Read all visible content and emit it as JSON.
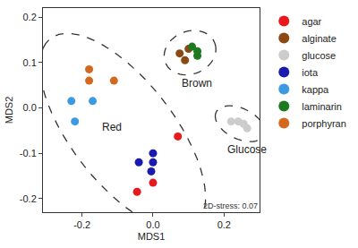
{
  "chart_data": {
    "type": "scatter",
    "x_label": "MDS1",
    "y_label": "MDS2",
    "xlim": [
      -0.31,
      0.3
    ],
    "ylim": [
      -0.23,
      0.22
    ],
    "xticks": [
      {
        "value": -0.2,
        "label": "-0.2"
      },
      {
        "value": 0,
        "label": "0.0"
      },
      {
        "value": 0.2,
        "label": "0.2"
      }
    ],
    "yticks": [
      {
        "value": -0.2,
        "label": "-0.2"
      },
      {
        "value": -0.1,
        "label": "-0.1"
      },
      {
        "value": 0,
        "label": "0.0"
      },
      {
        "value": 0.1,
        "label": "0.1"
      },
      {
        "value": 0.2,
        "label": "0.2"
      }
    ],
    "grid": false,
    "legend": "right",
    "marker": "circle",
    "series": [
      {
        "name": "agar",
        "color": "#e8191c",
        "x": [
          0.07,
          0.0,
          -0.045
        ],
        "y": [
          -0.063,
          -0.165,
          -0.185
        ]
      },
      {
        "name": "alginate",
        "color": "#8b4a14",
        "x": [
          0.075,
          0.09,
          0.1
        ],
        "y": [
          0.12,
          0.105,
          0.13
        ]
      },
      {
        "name": "glucose",
        "color": "#cccccc",
        "x": [
          0.22,
          0.24,
          0.255,
          0.265
        ],
        "y": [
          -0.03,
          -0.03,
          -0.035,
          -0.045
        ]
      },
      {
        "name": "iota",
        "color": "#1a1ab0",
        "x": [
          -0.04,
          0.0,
          0.0,
          -0.005
        ],
        "y": [
          -0.12,
          -0.1,
          -0.12,
          -0.14
        ]
      },
      {
        "name": "kappa",
        "color": "#3b9ae0",
        "x": [
          -0.23,
          -0.17,
          -0.22
        ],
        "y": [
          0.015,
          0.015,
          -0.03
        ]
      },
      {
        "name": "laminarin",
        "color": "#1e7a1e",
        "x": [
          0.11,
          0.125,
          0.125
        ],
        "y": [
          0.135,
          0.115,
          0.125
        ]
      },
      {
        "name": "porphyran",
        "color": "#d2691e",
        "x": [
          -0.18,
          -0.18,
          -0.11
        ],
        "y": [
          0.085,
          0.06,
          0.06
        ]
      }
    ],
    "groups": [
      {
        "label": "Red",
        "members": [
          "agar",
          "iota",
          "kappa",
          "porphyran"
        ]
      },
      {
        "label": "Brown",
        "members": [
          "alginate",
          "laminarin"
        ]
      },
      {
        "label": "Glucose",
        "members": [
          "glucose"
        ]
      }
    ],
    "annotations": [
      {
        "text": "2D-stress: 0.07",
        "position": "bottom right"
      }
    ]
  }
}
